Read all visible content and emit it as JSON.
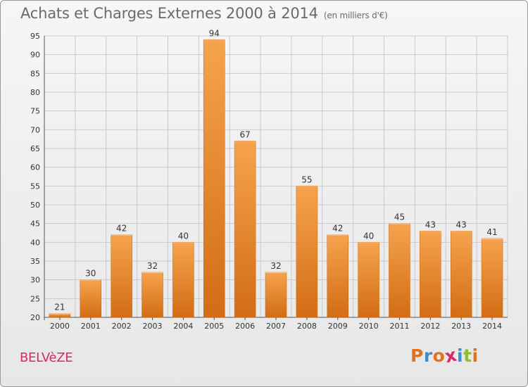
{
  "header": {
    "title": "Achats et Charges Externes 2000 à 2014",
    "subtitle": "(en milliers d'€)"
  },
  "footer": {
    "commune": "BELVèZE",
    "brand_letters": [
      "P",
      "r",
      "o",
      "x",
      "i",
      "t",
      "i"
    ],
    "brand_colors": [
      "#e2731c",
      "#3b8fd0",
      "#e2731c",
      "#d9286a",
      "#3b8fd0",
      "#8bbf2c",
      "#e2731c"
    ]
  },
  "colors": {
    "bar_top": "#f6a34e",
    "bar_bottom": "#d26d14",
    "grid": "#c9c9c9",
    "axis_text": "#333333"
  },
  "chart_data": {
    "type": "bar",
    "categories": [
      "2000",
      "2001",
      "2002",
      "2003",
      "2004",
      "2005",
      "2006",
      "2007",
      "2008",
      "2009",
      "2010",
      "2011",
      "2012",
      "2013",
      "2014"
    ],
    "values": [
      21,
      30,
      42,
      32,
      40,
      94,
      67,
      32,
      55,
      42,
      40,
      45,
      43,
      43,
      41
    ],
    "title": "Achats et Charges Externes 2000 à 2014",
    "ylim": [
      20,
      95
    ],
    "yticks": [
      20,
      25,
      30,
      35,
      40,
      45,
      50,
      55,
      60,
      65,
      70,
      75,
      80,
      85,
      90,
      95
    ],
    "grid": true
  }
}
